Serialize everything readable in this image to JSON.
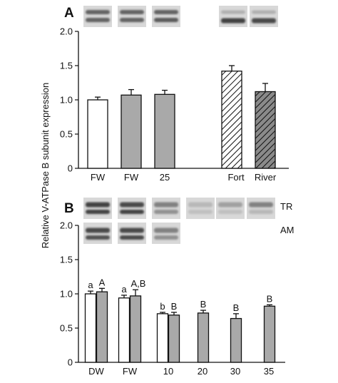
{
  "figure": {
    "ylabel": "Relative V-ATPase B subunit expression"
  },
  "chart_data": [
    {
      "type": "bar",
      "panel": "A",
      "categories": [
        "FW",
        "FW",
        "25",
        "Fort",
        "River"
      ],
      "values": [
        1.0,
        1.07,
        1.08,
        1.42,
        1.12
      ],
      "errors": [
        0.04,
        0.08,
        0.06,
        0.08,
        0.12
      ],
      "fills": [
        "white",
        "gray",
        "gray",
        "hatched-white",
        "hatched-gray"
      ],
      "ylim": [
        0,
        2.0
      ],
      "yticks": [
        "0",
        "0.5",
        "1.0",
        "1.5",
        "2.0"
      ],
      "grid": false
    },
    {
      "type": "bar",
      "panel": "B",
      "blot_labels": [
        "TR",
        "AM"
      ],
      "categories": [
        "DW",
        "FW",
        "10",
        "20",
        "30",
        "35"
      ],
      "series": [
        {
          "values": [
            1.0,
            0.94,
            0.71,
            null,
            null,
            null
          ],
          "errors": [
            0.04,
            0.04,
            0.02,
            null,
            null,
            null
          ],
          "letters": [
            "a",
            "a",
            "b",
            "",
            "",
            ""
          ]
        },
        {
          "values": [
            1.03,
            0.97,
            0.69,
            0.72,
            0.64,
            0.82
          ],
          "errors": [
            0.05,
            0.09,
            0.04,
            0.04,
            0.07,
            0.02
          ],
          "letters": [
            "A",
            "A,B",
            "B",
            "B",
            "B",
            "B"
          ]
        }
      ],
      "ylim": [
        0,
        2.0
      ],
      "yticks": [
        "0",
        "0.5",
        "1.0",
        "1.5",
        "2.0"
      ],
      "grid": false
    }
  ],
  "colors": {
    "gray_bar": "#a9a9a9",
    "white_bar": "#ffffff",
    "axis": "#111111",
    "blot_band": "#3a3a3a",
    "blot_bg": "#d8d8d8"
  }
}
